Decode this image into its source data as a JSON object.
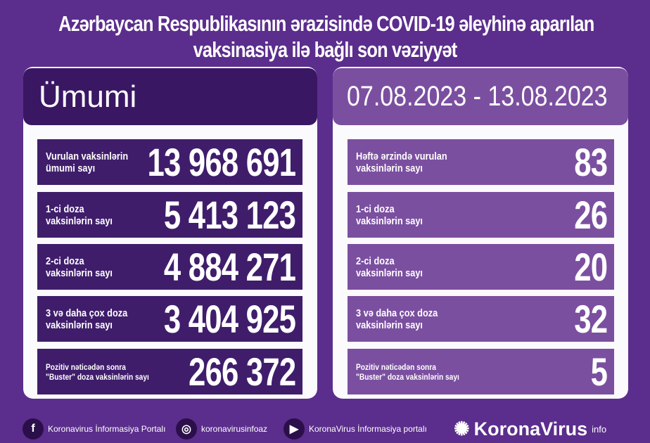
{
  "title": {
    "line1": "Azərbaycan Respublikasının ərazisində COVID-19 əleyhinə aparılan",
    "line2": "vaksinasiya ilə bağlı son vəziyyət"
  },
  "left": {
    "header": "Ümumi",
    "rows": [
      {
        "label": "Vurulan vaksinlərin\nümumi sayı",
        "value": "13 968 691"
      },
      {
        "label": "1-ci doza\nvaksinlərin sayı",
        "value": "5 413 123"
      },
      {
        "label": "2-ci doza\nvaksinlərin sayı",
        "value": "4 884 271"
      },
      {
        "label": "3 və daha çox doza\nvaksinlərin sayı",
        "value": "3 404 925"
      },
      {
        "label": "Pozitiv nəticədən sonra\n\"Buster\" doza vaksinlərin sayı",
        "value": "266 372"
      }
    ]
  },
  "right": {
    "header": "07.08.2023 - 13.08.2023",
    "rows": [
      {
        "label": "Həftə ərzində vurulan\nvaksinlərin sayı",
        "value": "83"
      },
      {
        "label": "1-ci doza\nvaksinlərin sayı",
        "value": "26"
      },
      {
        "label": "2-ci doza\nvaksinlərin sayı",
        "value": "20"
      },
      {
        "label": "3 və daha çox doza\nvaksinlərin sayı",
        "value": "32"
      },
      {
        "label": "Pozitiv nəticədən sonra\n\"Buster\" doza vaksinlərin sayı",
        "value": "5"
      }
    ]
  },
  "footer": {
    "facebook": "Koronavirus İnformasiya Portalı",
    "instagram": "koronavirusinfoaz",
    "youtube": "KoronaVirus İnformasiya portalı",
    "logo": "KoronaVirus",
    "logo_sup": "info"
  },
  "colors": {
    "background": "#5b2d8c",
    "left_rows": "#3f1d6b",
    "right_rows": "#7b4fa0",
    "panel": "#fbfafc"
  }
}
